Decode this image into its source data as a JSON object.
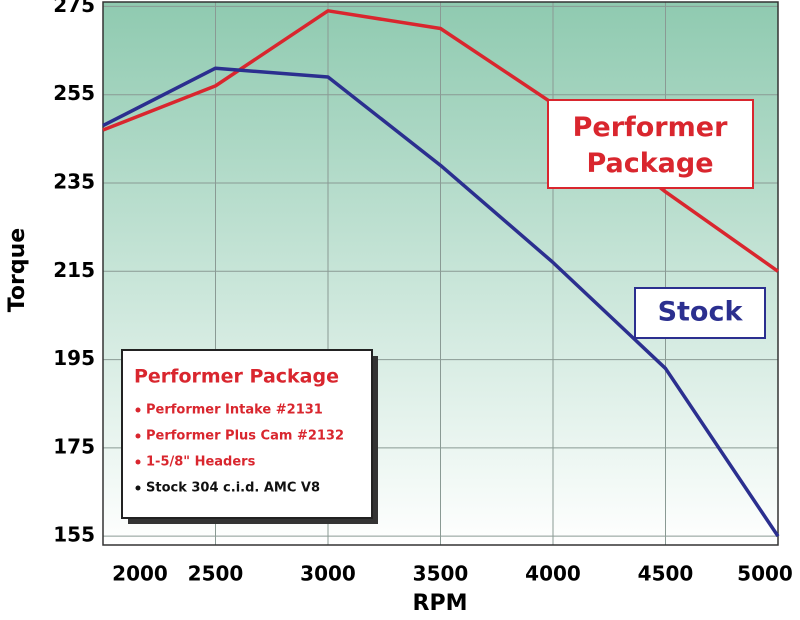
{
  "chart_data": {
    "type": "line",
    "x_label": "RPM",
    "y_label": "Torque",
    "x": [
      2000,
      2500,
      3000,
      3500,
      4000,
      4500,
      5000
    ],
    "series": [
      {
        "name": "Performer Package",
        "color": "#d9262e",
        "values": [
          247,
          257,
          274,
          270,
          253,
          233,
          215
        ]
      },
      {
        "name": "Stock",
        "color": "#2b2f8f",
        "values": [
          248,
          261,
          259,
          239,
          217,
          193,
          155
        ]
      }
    ],
    "xlim": [
      2000,
      5000
    ],
    "xticks": [
      2000,
      2500,
      3000,
      3500,
      4000,
      4500,
      5000
    ],
    "ylim": [
      153,
      276
    ],
    "yticks": [
      155,
      175,
      195,
      215,
      235,
      255,
      275
    ],
    "grid": true,
    "legend_box": {
      "title": "Performer Package",
      "items": [
        {
          "text": "Performer Intake #2131",
          "color": "#d9262e"
        },
        {
          "text": "Performer Plus Cam #2132",
          "color": "#d9262e"
        },
        {
          "text": "1-5/8\" Headers",
          "color": "#d9262e"
        },
        {
          "text": "Stock 304 c.i.d. AMC V8",
          "color": "#111111"
        }
      ]
    }
  }
}
